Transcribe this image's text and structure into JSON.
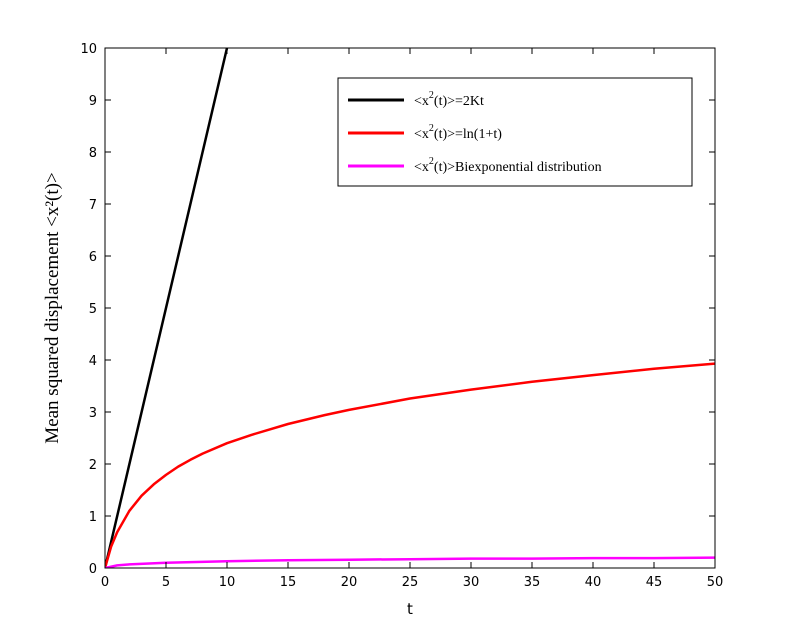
{
  "chart_data": {
    "type": "line",
    "title": "",
    "xlabel": "t",
    "ylabel": "Mean squared displacement <x²(t)>",
    "xlim": [
      0,
      50
    ],
    "ylim": [
      0,
      10
    ],
    "x_ticks": [
      0,
      5,
      10,
      15,
      20,
      25,
      30,
      35,
      40,
      45,
      50
    ],
    "y_ticks": [
      0,
      1,
      2,
      3,
      4,
      5,
      6,
      7,
      8,
      9,
      10
    ],
    "grid": false,
    "legend_position": "top-right",
    "series": [
      {
        "name": "<x²(t)>=2Kt",
        "legend_parts": [
          "<x",
          "2",
          "(t)>=2Kt"
        ],
        "color": "#000000",
        "x": [
          0,
          10
        ],
        "y": [
          0,
          10
        ]
      },
      {
        "name": "<x²(t)>=ln(1+t)",
        "legend_parts": [
          "<x",
          "2",
          "(t)>=ln(1+t)"
        ],
        "color": "#ff0000",
        "x": [
          0,
          0.5,
          1,
          2,
          3,
          4,
          5,
          6,
          7,
          8,
          10,
          12,
          15,
          18,
          20,
          25,
          30,
          35,
          40,
          45,
          50
        ],
        "y": [
          0,
          0.41,
          0.69,
          1.1,
          1.39,
          1.61,
          1.79,
          1.95,
          2.08,
          2.2,
          2.4,
          2.56,
          2.77,
          2.94,
          3.04,
          3.26,
          3.43,
          3.58,
          3.71,
          3.83,
          3.93
        ]
      },
      {
        "name": "<x²(t)>Biexponential distribution",
        "legend_parts": [
          "<x",
          "2",
          "(t)>Biexponential distribution"
        ],
        "color": "#ff00ff",
        "x": [
          0,
          1,
          2,
          5,
          10,
          15,
          20,
          25,
          30,
          35,
          40,
          45,
          50
        ],
        "y": [
          0,
          0.05,
          0.07,
          0.1,
          0.13,
          0.15,
          0.16,
          0.17,
          0.18,
          0.18,
          0.19,
          0.19,
          0.2
        ]
      }
    ]
  }
}
